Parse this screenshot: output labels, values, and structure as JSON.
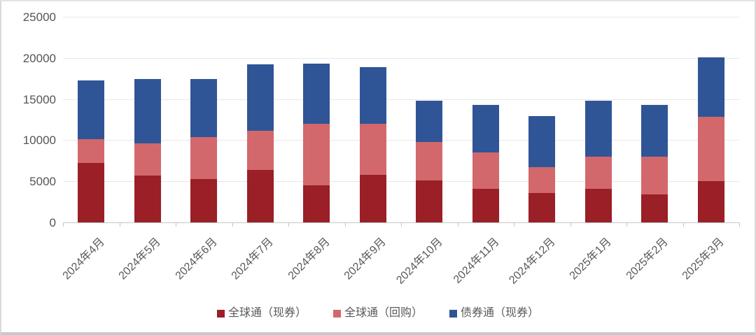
{
  "chart_data": {
    "type": "bar",
    "stacked": true,
    "grid": true,
    "legend_position": "bottom",
    "ylim": [
      0,
      25000
    ],
    "yticks": [
      0,
      5000,
      10000,
      15000,
      20000,
      25000
    ],
    "ytick_labels": [
      "0",
      "5000",
      "10000",
      "15000",
      "20000",
      "25000"
    ],
    "categories": [
      "2024年4月",
      "2024年5月",
      "2024年6月",
      "2024年7月",
      "2024年8月",
      "2024年9月",
      "2024年10月",
      "2024年11月",
      "2024年12月",
      "2025年1月",
      "2025年2月",
      "2025年3月"
    ],
    "series": [
      {
        "name": "全球通（现券）",
        "color": "#9a1f26",
        "values": [
          7200,
          5700,
          5300,
          6400,
          4500,
          5800,
          5100,
          4100,
          3600,
          4100,
          3400,
          5000
        ]
      },
      {
        "name": "全球通（回购）",
        "color": "#d2686b",
        "values": [
          2900,
          3900,
          5100,
          4700,
          7500,
          6200,
          4700,
          4400,
          3100,
          3900,
          4600,
          7800
        ]
      },
      {
        "name": "债券通（现券）",
        "color": "#2f5597",
        "values": [
          7200,
          7800,
          7000,
          8100,
          7300,
          6900,
          5000,
          5800,
          6200,
          6800,
          6300,
          7300
        ]
      }
    ],
    "totals": [
      17300,
      17400,
      17400,
      19200,
      19300,
      18900,
      14800,
      14300,
      12900,
      14800,
      14300,
      20100
    ]
  },
  "colors": {
    "grid": "#e7e7e7",
    "axis": "#c6c6c6",
    "tick_text": "#595959"
  }
}
